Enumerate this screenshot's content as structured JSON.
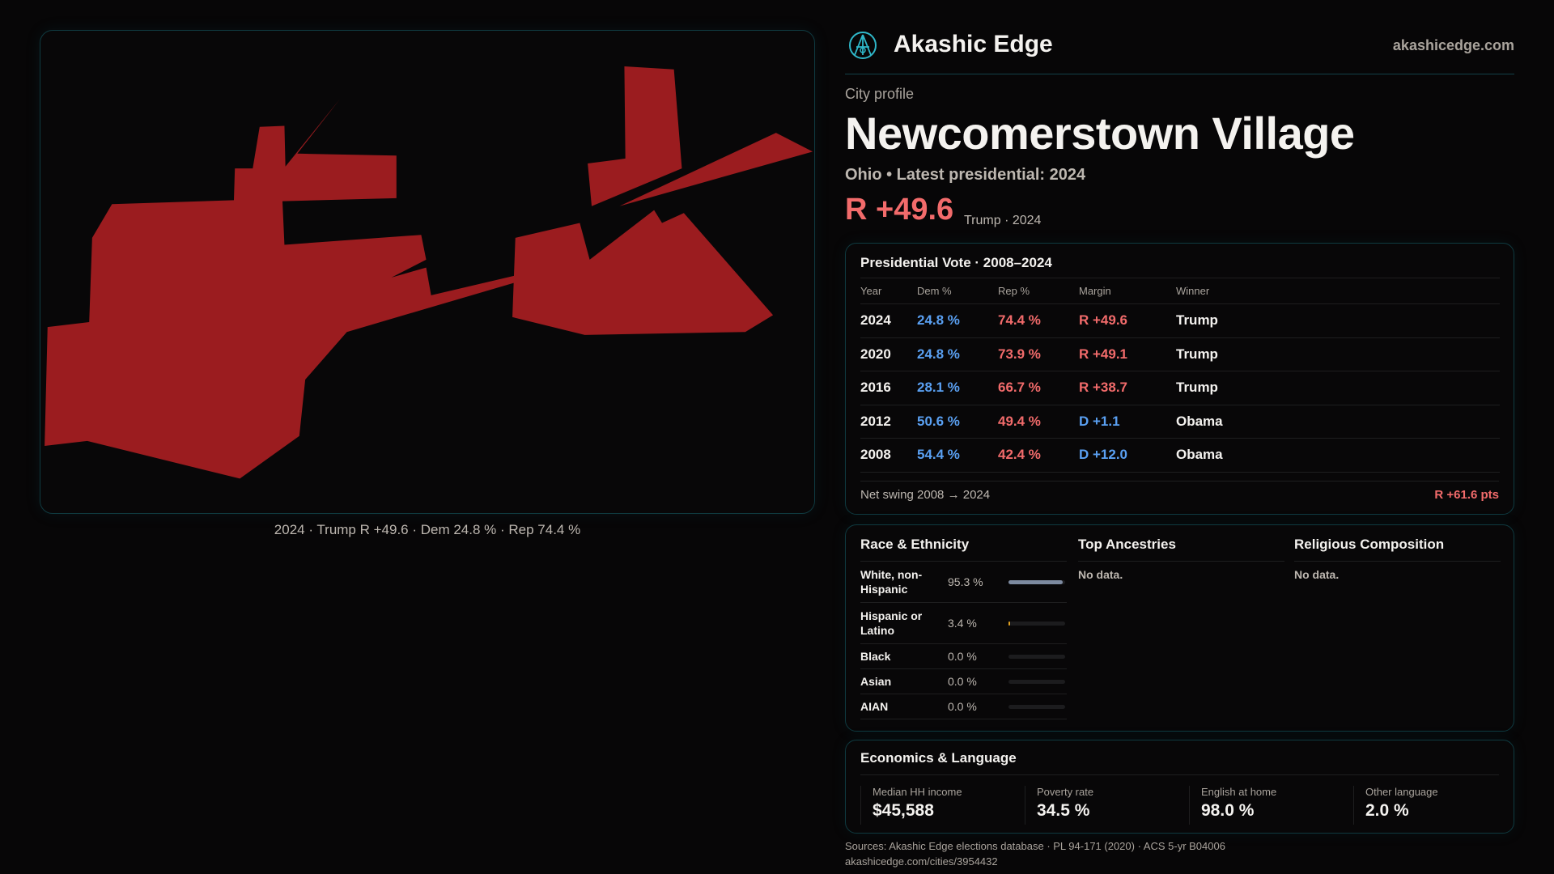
{
  "map": {
    "fill_color": "#9b1c1f",
    "caption": "2024 · Trump R +49.6 · Dem 24.8 % · Rep 74.4 %"
  },
  "header": {
    "brand": "Akashic Edge",
    "domain": "akashicedge.com",
    "logo_icon": "akashic-edge-logo"
  },
  "profile": {
    "kicker": "City profile",
    "title": "Newcomerstown Village",
    "subtitle": "Ohio • Latest presidential: 2024",
    "margin": "R +49.6",
    "margin_note": "Trump · 2024"
  },
  "vote": {
    "title": "Presidential Vote · 2008–2024",
    "columns": [
      "Year",
      "Dem %",
      "Rep %",
      "Margin",
      "Winner"
    ],
    "rows": [
      {
        "year": "2024",
        "dem": "24.8 %",
        "rep": "74.4 %",
        "margin": "R +49.6",
        "party": "rep",
        "winner": "Trump"
      },
      {
        "year": "2020",
        "dem": "24.8 %",
        "rep": "73.9 %",
        "margin": "R +49.1",
        "party": "rep",
        "winner": "Trump"
      },
      {
        "year": "2016",
        "dem": "28.1 %",
        "rep": "66.7 %",
        "margin": "R +38.7",
        "party": "rep",
        "winner": "Trump"
      },
      {
        "year": "2012",
        "dem": "50.6 %",
        "rep": "49.4 %",
        "margin": "D +1.1",
        "party": "dem",
        "winner": "Obama"
      },
      {
        "year": "2008",
        "dem": "54.4 %",
        "rep": "42.4 %",
        "margin": "D +12.0",
        "party": "dem",
        "winner": "Obama"
      }
    ],
    "swing_label": "Net swing 2008 → 2024",
    "swing_value": "R +61.6 pts"
  },
  "race": {
    "title": "Race & Ethnicity",
    "rows": [
      {
        "label": "White, non-Hispanic",
        "pct": "95.3 %",
        "value": 95.3,
        "color": "#7d8aa0"
      },
      {
        "label": "Hispanic or Latino",
        "pct": "3.4 %",
        "value": 3.4,
        "color": "#e0a020"
      },
      {
        "label": "Black",
        "pct": "0.0 %",
        "value": 0,
        "color": "#7d8aa0"
      },
      {
        "label": "Asian",
        "pct": "0.0 %",
        "value": 0,
        "color": "#7d8aa0"
      },
      {
        "label": "AIAN",
        "pct": "0.0 %",
        "value": 0,
        "color": "#7d8aa0"
      }
    ]
  },
  "ancestries": {
    "title": "Top Ancestries",
    "empty": "No data."
  },
  "religion": {
    "title": "Religious Composition",
    "empty": "No data."
  },
  "econ": {
    "title": "Economics & Language",
    "stats": [
      {
        "label": "Median HH income",
        "value": "$45,588"
      },
      {
        "label": "Poverty rate",
        "value": "34.5 %"
      },
      {
        "label": "English at home",
        "value": "98.0 %"
      },
      {
        "label": "Other language",
        "value": "2.0 %"
      }
    ]
  },
  "footer": {
    "sources": "Sources: Akashic Edge elections database · PL 94-171 (2020) · ACS 5-yr B04006",
    "url": "akashicedge.com/cities/3954432"
  }
}
